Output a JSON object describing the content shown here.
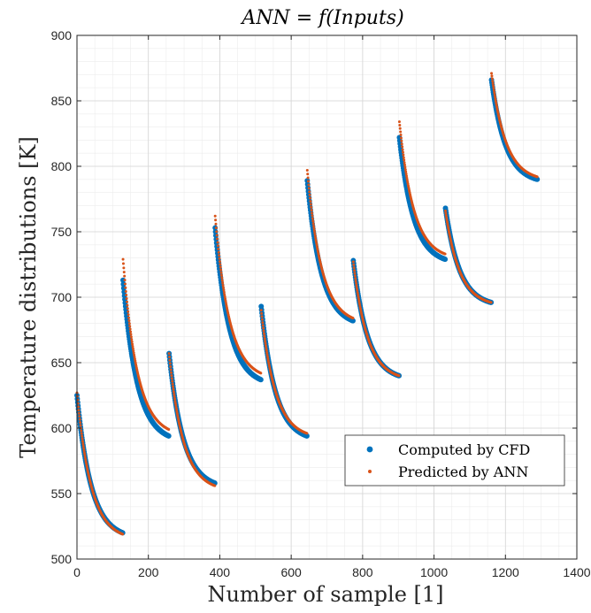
{
  "chart_data": {
    "type": "scatter",
    "title": "ANN = f(Inputs)",
    "xlabel": "Number of sample [1]",
    "ylabel": "Temperature distributions [K]",
    "xlim": [
      0,
      1400
    ],
    "ylim": [
      500,
      900
    ],
    "xticks": [
      "0",
      "200",
      "400",
      "600",
      "800",
      "1000",
      "1200",
      "1400"
    ],
    "yticks": [
      "500",
      "550",
      "600",
      "650",
      "700",
      "750",
      "800",
      "850",
      "900"
    ],
    "grid": true,
    "minor_grid": true,
    "legend_position": "bottom-right",
    "series": [
      {
        "name": "Computed by CFD",
        "color": "#0072BD",
        "marker": "dot-large",
        "segments": [
          {
            "x0": 0,
            "x1": 128,
            "y0": 625,
            "y1": 520
          },
          {
            "x0": 129,
            "x1": 257,
            "y0": 713,
            "y1": 594
          },
          {
            "x0": 258,
            "x1": 386,
            "y0": 657,
            "y1": 558
          },
          {
            "x0": 387,
            "x1": 515,
            "y0": 753,
            "y1": 637
          },
          {
            "x0": 516,
            "x1": 644,
            "y0": 693,
            "y1": 594
          },
          {
            "x0": 645,
            "x1": 773,
            "y0": 789,
            "y1": 682
          },
          {
            "x0": 774,
            "x1": 902,
            "y0": 728,
            "y1": 640
          },
          {
            "x0": 903,
            "x1": 1031,
            "y0": 822,
            "y1": 729
          },
          {
            "x0": 1032,
            "x1": 1160,
            "y0": 768,
            "y1": 696
          },
          {
            "x0": 1161,
            "x1": 1289,
            "y0": 866,
            "y1": 790
          }
        ]
      },
      {
        "name": "Predicted by ANN",
        "color": "#D95319",
        "marker": "dot-small",
        "segments": [
          {
            "x0": 0,
            "x1": 128,
            "y0": 627,
            "y1": 519
          },
          {
            "x0": 129,
            "x1": 257,
            "y0": 729,
            "y1": 599
          },
          {
            "x0": 258,
            "x1": 386,
            "y0": 657,
            "y1": 556
          },
          {
            "x0": 387,
            "x1": 515,
            "y0": 762,
            "y1": 642
          },
          {
            "x0": 516,
            "x1": 644,
            "y0": 690,
            "y1": 596
          },
          {
            "x0": 645,
            "x1": 773,
            "y0": 797,
            "y1": 684
          },
          {
            "x0": 774,
            "x1": 902,
            "y0": 727,
            "y1": 640
          },
          {
            "x0": 903,
            "x1": 1031,
            "y0": 834,
            "y1": 733
          },
          {
            "x0": 1032,
            "x1": 1160,
            "y0": 766,
            "y1": 696
          },
          {
            "x0": 1161,
            "x1": 1289,
            "y0": 871,
            "y1": 792
          }
        ]
      }
    ]
  }
}
